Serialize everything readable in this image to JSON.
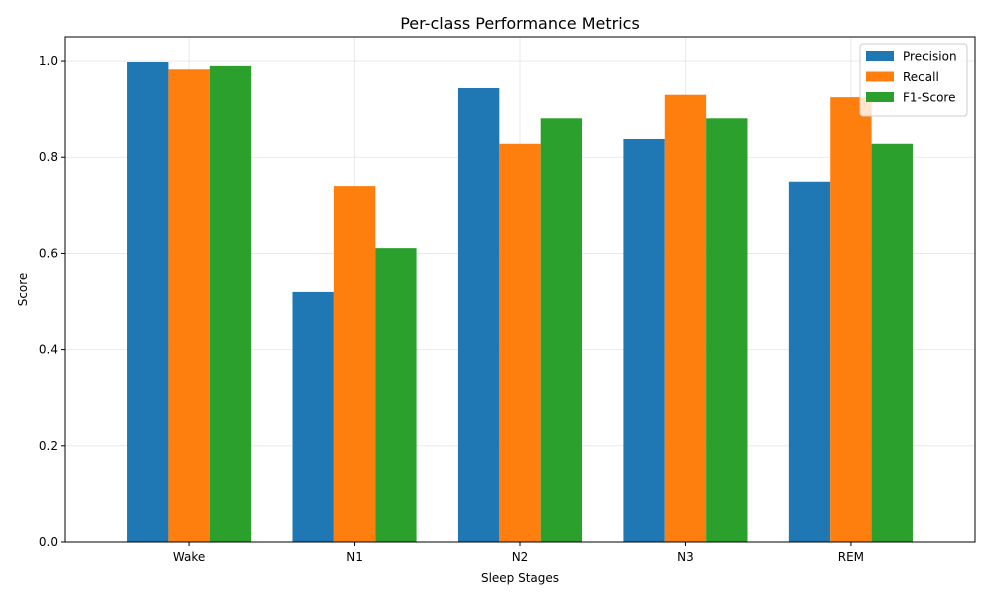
{
  "chart_data": {
    "type": "bar",
    "title": "Per-class Performance Metrics",
    "xlabel": "Sleep Stages",
    "ylabel": "Score",
    "categories": [
      "Wake",
      "N1",
      "N2",
      "N3",
      "REM"
    ],
    "series": [
      {
        "name": "Precision",
        "color": "#1f77b4",
        "values": [
          0.998,
          0.52,
          0.944,
          0.838,
          0.749
        ]
      },
      {
        "name": "Recall",
        "color": "#ff7f0e",
        "values": [
          0.983,
          0.74,
          0.828,
          0.93,
          0.925
        ]
      },
      {
        "name": "F1-Score",
        "color": "#2ca02c",
        "values": [
          0.99,
          0.611,
          0.881,
          0.881,
          0.828
        ]
      }
    ],
    "ylim": [
      0,
      1.05
    ],
    "yticks": [
      0.0,
      0.2,
      0.4,
      0.6,
      0.8,
      1.0
    ],
    "ytick_labels": [
      "0.0",
      "0.2",
      "0.4",
      "0.6",
      "0.8",
      "1.0"
    ],
    "grid": true,
    "legend_position": "top-right"
  }
}
